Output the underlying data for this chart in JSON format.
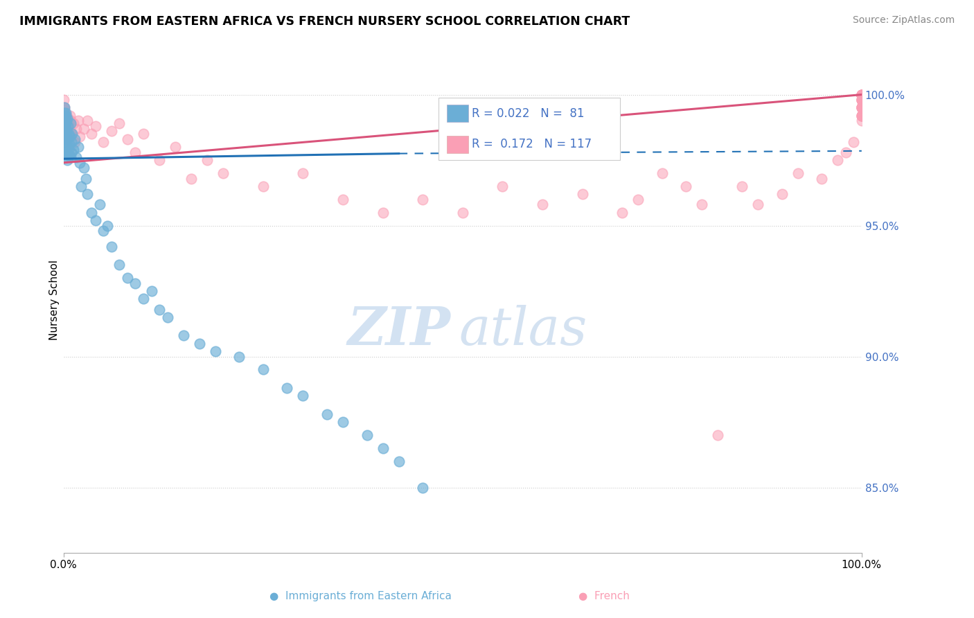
{
  "title": "IMMIGRANTS FROM EASTERN AFRICA VS FRENCH NURSERY SCHOOL CORRELATION CHART",
  "source": "Source: ZipAtlas.com",
  "ylabel": "Nursery School",
  "right_yticks": [
    85.0,
    90.0,
    95.0,
    100.0
  ],
  "xmin": 0.0,
  "xmax": 100.0,
  "ymin": 82.5,
  "ymax": 101.8,
  "legend": {
    "blue_R": 0.022,
    "blue_N": 81,
    "pink_R": 0.172,
    "pink_N": 117
  },
  "blue_color": "#6baed6",
  "pink_color": "#fa9fb5",
  "blue_line_color": "#2171b5",
  "pink_line_color": "#d9537a",
  "grid_color": "#cccccc",
  "blue_solid_end_x": 42.0,
  "blue_line_start_y": 97.55,
  "blue_line_end_y": 97.75,
  "blue_line_dash_end_y": 97.85,
  "pink_line_start_y": 97.4,
  "pink_line_end_y": 100.0,
  "blue_points_x": [
    0.05,
    0.06,
    0.07,
    0.08,
    0.09,
    0.1,
    0.11,
    0.12,
    0.13,
    0.14,
    0.15,
    0.16,
    0.17,
    0.18,
    0.19,
    0.2,
    0.21,
    0.22,
    0.23,
    0.24,
    0.25,
    0.26,
    0.27,
    0.28,
    0.29,
    0.3,
    0.32,
    0.34,
    0.36,
    0.38,
    0.4,
    0.42,
    0.45,
    0.48,
    0.5,
    0.55,
    0.6,
    0.65,
    0.7,
    0.75,
    0.8,
    0.85,
    0.9,
    0.95,
    1.0,
    1.1,
    1.2,
    1.4,
    1.6,
    1.8,
    2.0,
    2.2,
    2.5,
    2.8,
    3.0,
    3.5,
    4.0,
    4.5,
    5.0,
    5.5,
    6.0,
    7.0,
    8.0,
    9.0,
    10.0,
    11.0,
    12.0,
    13.0,
    15.0,
    17.0,
    19.0,
    22.0,
    25.0,
    28.0,
    30.0,
    33.0,
    35.0,
    38.0,
    40.0,
    42.0,
    45.0
  ],
  "blue_points_y": [
    98.8,
    99.1,
    98.5,
    99.3,
    98.0,
    99.0,
    98.7,
    99.2,
    98.4,
    99.5,
    98.2,
    98.9,
    99.1,
    98.3,
    97.9,
    98.6,
    99.0,
    98.1,
    98.8,
    97.8,
    99.2,
    98.5,
    97.6,
    98.9,
    99.3,
    98.7,
    98.4,
    99.0,
    98.2,
    97.8,
    98.6,
    99.1,
    98.3,
    97.5,
    98.0,
    98.8,
    97.9,
    98.5,
    98.1,
    97.7,
    98.4,
    98.9,
    97.6,
    98.2,
    97.8,
    98.5,
    97.9,
    98.3,
    97.6,
    98.0,
    97.4,
    96.5,
    97.2,
    96.8,
    96.2,
    95.5,
    95.2,
    95.8,
    94.8,
    95.0,
    94.2,
    93.5,
    93.0,
    92.8,
    92.2,
    92.5,
    91.8,
    91.5,
    90.8,
    90.5,
    90.2,
    90.0,
    89.5,
    88.8,
    88.5,
    87.8,
    87.5,
    87.0,
    86.5,
    86.0,
    85.0
  ],
  "pink_points_x": [
    0.03,
    0.04,
    0.05,
    0.06,
    0.07,
    0.08,
    0.09,
    0.1,
    0.11,
    0.12,
    0.13,
    0.14,
    0.15,
    0.16,
    0.17,
    0.18,
    0.19,
    0.2,
    0.22,
    0.24,
    0.25,
    0.27,
    0.28,
    0.3,
    0.32,
    0.34,
    0.36,
    0.38,
    0.4,
    0.42,
    0.45,
    0.48,
    0.5,
    0.55,
    0.6,
    0.65,
    0.7,
    0.75,
    0.8,
    0.85,
    0.9,
    1.0,
    1.2,
    1.4,
    1.6,
    1.8,
    2.0,
    2.5,
    3.0,
    3.5,
    4.0,
    5.0,
    6.0,
    7.0,
    8.0,
    9.0,
    10.0,
    12.0,
    14.0,
    16.0,
    18.0,
    20.0,
    25.0,
    30.0,
    35.0,
    40.0,
    45.0,
    50.0,
    55.0,
    60.0,
    65.0,
    70.0,
    72.0,
    75.0,
    78.0,
    80.0,
    82.0,
    85.0,
    87.0,
    90.0,
    92.0,
    95.0,
    97.0,
    98.0,
    99.0,
    100.0,
    100.0,
    100.0,
    100.0,
    100.0,
    100.0,
    100.0,
    100.0,
    100.0,
    100.0,
    100.0,
    100.0,
    100.0,
    100.0,
    100.0,
    100.0,
    100.0,
    100.0,
    100.0,
    100.0,
    100.0,
    100.0,
    100.0,
    100.0,
    100.0,
    100.0,
    100.0,
    100.0,
    100.0,
    100.0,
    100.0,
    100.0
  ],
  "pink_points_y": [
    99.5,
    98.8,
    99.2,
    99.8,
    98.5,
    99.0,
    98.7,
    99.4,
    98.2,
    99.1,
    98.8,
    99.5,
    98.3,
    99.0,
    98.6,
    99.2,
    98.0,
    98.8,
    99.3,
    98.5,
    99.0,
    98.4,
    98.8,
    99.1,
    98.5,
    99.0,
    98.3,
    98.7,
    99.2,
    98.6,
    99.0,
    98.4,
    98.8,
    99.1,
    98.5,
    99.0,
    98.4,
    98.8,
    99.2,
    98.6,
    99.0,
    98.5,
    98.9,
    98.2,
    98.7,
    99.0,
    98.4,
    98.7,
    99.0,
    98.5,
    98.8,
    98.2,
    98.6,
    98.9,
    98.3,
    97.8,
    98.5,
    97.5,
    98.0,
    96.8,
    97.5,
    97.0,
    96.5,
    97.0,
    96.0,
    95.5,
    96.0,
    95.5,
    96.5,
    95.8,
    96.2,
    95.5,
    96.0,
    97.0,
    96.5,
    95.8,
    87.0,
    96.5,
    95.8,
    96.2,
    97.0,
    96.8,
    97.5,
    97.8,
    98.2,
    99.0,
    99.5,
    99.8,
    100.0,
    99.5,
    99.8,
    100.0,
    99.5,
    99.2,
    100.0,
    99.8,
    99.5,
    100.0,
    99.2,
    100.0,
    99.8,
    99.5,
    100.0,
    99.2,
    99.8,
    100.0,
    99.5,
    100.0,
    99.2,
    99.8,
    100.0,
    99.5,
    99.8,
    100.0,
    99.2,
    100.0,
    99.5
  ]
}
